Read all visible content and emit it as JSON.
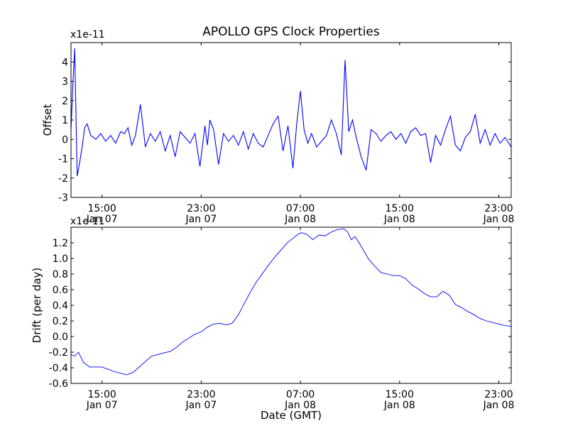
{
  "figure": {
    "title": "APOLLO GPS Clock Properties",
    "xlabel": "Date (GMT)",
    "x_ticks": [
      {
        "t": 2.5,
        "time": "15:00",
        "date": "Jan 07"
      },
      {
        "t": 10.5,
        "time": "23:00",
        "date": "Jan 07"
      },
      {
        "t": 18.5,
        "time": "07:00",
        "date": "Jan 08"
      },
      {
        "t": 26.5,
        "time": "15:00",
        "date": "Jan 08"
      },
      {
        "t": 34.5,
        "time": "23:00",
        "date": "Jan 08"
      }
    ]
  },
  "chart_data": [
    {
      "type": "line",
      "panel": "top",
      "ylabel": "Offset",
      "exponent_label": "x1e-11",
      "xlim": [
        0,
        35.5
      ],
      "ylim": [
        -3,
        5
      ],
      "yticks": [
        -3,
        -2,
        -1,
        0,
        1,
        2,
        3,
        4
      ],
      "grid": false,
      "color": "#0000ff",
      "series": [
        {
          "x": [
            0,
            0.15,
            0.3,
            0.5,
            0.7,
            0.9,
            1.1,
            1.3,
            1.6,
            2.0,
            2.4,
            2.8,
            3.2,
            3.6,
            4.0,
            4.3,
            4.6,
            4.9,
            5.2,
            5.6,
            6.0,
            6.4,
            6.8,
            7.2,
            7.6,
            8.0,
            8.4,
            8.8,
            9.2,
            9.6,
            10.0,
            10.4,
            10.8,
            11.0,
            11.2,
            11.5,
            11.9,
            12.3,
            12.7,
            13.1,
            13.5,
            13.9,
            14.3,
            14.7,
            15.1,
            15.5,
            15.9,
            16.3,
            16.7,
            17.1,
            17.5,
            17.9,
            18.2,
            18.5,
            18.8,
            19.1,
            19.4,
            19.8,
            20.2,
            20.6,
            21.0,
            21.4,
            21.8,
            22.1,
            22.4,
            22.7,
            23.0,
            23.4,
            23.8,
            24.2,
            24.6,
            25.0,
            25.4,
            25.8,
            26.2,
            26.6,
            27.0,
            27.4,
            27.8,
            28.2,
            28.6,
            29.0,
            29.4,
            29.8,
            30.2,
            30.6,
            31.0,
            31.4,
            31.8,
            32.2,
            32.6,
            33.0,
            33.4,
            33.8,
            34.2,
            34.6,
            35.0,
            35.5
          ],
          "y": [
            0.5,
            2.8,
            4.7,
            -1.9,
            -1.2,
            -0.4,
            0.6,
            0.8,
            0.2,
            0.0,
            0.3,
            -0.1,
            0.2,
            -0.2,
            0.4,
            0.3,
            0.6,
            -0.3,
            0.2,
            1.8,
            -0.4,
            0.3,
            -0.1,
            0.4,
            -0.6,
            0.2,
            -0.9,
            0.4,
            0.1,
            -0.2,
            0.3,
            -1.4,
            0.7,
            -0.3,
            1.0,
            0.5,
            -1.3,
            0.3,
            -0.1,
            0.2,
            -0.3,
            0.4,
            -0.5,
            0.3,
            -0.2,
            -0.4,
            0.2,
            0.8,
            1.2,
            -0.6,
            0.7,
            -1.5,
            0.8,
            2.5,
            0.5,
            -0.2,
            0.3,
            -0.4,
            -0.1,
            0.2,
            1.0,
            0.3,
            -0.8,
            4.1,
            0.4,
            1.0,
            0.1,
            -0.9,
            -1.6,
            0.5,
            0.3,
            -0.1,
            0.2,
            0.4,
            0.0,
            0.3,
            -0.2,
            0.4,
            0.6,
            0.2,
            0.3,
            -1.2,
            0.2,
            -0.3,
            0.5,
            1.2,
            -0.3,
            -0.6,
            0.1,
            0.4,
            1.3,
            -0.2,
            0.5,
            -0.3,
            0.3,
            -0.2,
            0.1,
            -0.4
          ]
        }
      ]
    },
    {
      "type": "line",
      "panel": "bottom",
      "ylabel": "Drift (per day)",
      "exponent_label": "x1e-11",
      "xlim": [
        0,
        35.5
      ],
      "ylim": [
        -0.6,
        1.4
      ],
      "yticks": [
        -0.6,
        -0.4,
        -0.2,
        0.0,
        0.2,
        0.4,
        0.6,
        0.8,
        1.0,
        1.2
      ],
      "ytick_labels": [
        "-0.6",
        "-0.4",
        "-0.2",
        "0.0",
        "0.2",
        "0.4",
        "0.6",
        "0.8",
        "1.0",
        "1.2"
      ],
      "grid": false,
      "color": "#0000ff",
      "series": [
        {
          "x": [
            0,
            0.3,
            0.6,
            1.0,
            1.5,
            2.0,
            2.5,
            3.0,
            3.5,
            4.0,
            4.5,
            5.0,
            5.5,
            6.0,
            6.5,
            7.0,
            7.5,
            8.0,
            8.5,
            9.0,
            9.5,
            10.0,
            10.5,
            11.0,
            11.5,
            12.0,
            12.5,
            13.0,
            13.5,
            14.0,
            14.5,
            15.0,
            15.5,
            16.0,
            16.5,
            17.0,
            17.5,
            18.0,
            18.3,
            18.6,
            19.0,
            19.5,
            20.0,
            20.5,
            21.0,
            21.5,
            22.0,
            22.3,
            22.6,
            22.9,
            23.2,
            23.6,
            24.0,
            24.5,
            25.0,
            25.5,
            26.0,
            26.5,
            27.0,
            27.5,
            28.0,
            28.5,
            29.0,
            29.5,
            30.0,
            30.5,
            31.0,
            31.5,
            32.0,
            32.5,
            33.0,
            33.5,
            34.0,
            34.5,
            35.0,
            35.5
          ],
          "y": [
            -0.23,
            -0.25,
            -0.2,
            -0.33,
            -0.39,
            -0.39,
            -0.39,
            -0.42,
            -0.45,
            -0.47,
            -0.49,
            -0.46,
            -0.39,
            -0.32,
            -0.25,
            -0.23,
            -0.21,
            -0.19,
            -0.14,
            -0.07,
            -0.02,
            0.03,
            0.06,
            0.12,
            0.16,
            0.17,
            0.15,
            0.17,
            0.28,
            0.43,
            0.58,
            0.71,
            0.82,
            0.93,
            1.03,
            1.12,
            1.21,
            1.27,
            1.31,
            1.33,
            1.31,
            1.24,
            1.3,
            1.29,
            1.34,
            1.37,
            1.38,
            1.34,
            1.24,
            1.28,
            1.21,
            1.1,
            0.99,
            0.9,
            0.82,
            0.8,
            0.78,
            0.78,
            0.74,
            0.66,
            0.61,
            0.55,
            0.51,
            0.51,
            0.58,
            0.53,
            0.41,
            0.37,
            0.32,
            0.28,
            0.23,
            0.2,
            0.18,
            0.16,
            0.14,
            0.13
          ]
        }
      ]
    }
  ]
}
